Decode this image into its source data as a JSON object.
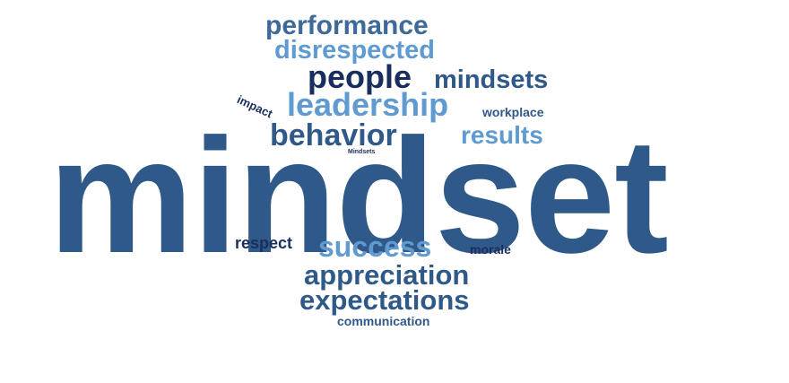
{
  "palette": {
    "dark_blue": "#2f5989",
    "navy": "#1a2e5e",
    "light_blue": "#5f9ad0",
    "mid_blue": "#3e6a99"
  },
  "words": [
    {
      "text": "mindset",
      "color": "#2f5989",
      "rank": 1
    },
    {
      "text": "performance",
      "color": "#3e6a99",
      "rank": 2
    },
    {
      "text": "disrespected",
      "color": "#5f9ad0",
      "rank": 3
    },
    {
      "text": "people",
      "color": "#1a2e5e",
      "rank": 4
    },
    {
      "text": "mindsets",
      "color": "#2f5989",
      "rank": 5
    },
    {
      "text": "leadership",
      "color": "#5f9ad0",
      "rank": 6
    },
    {
      "text": "impact",
      "color": "#1a2e5e",
      "rank": 7
    },
    {
      "text": "workplace",
      "color": "#2f5989",
      "rank": 8
    },
    {
      "text": "behavior",
      "color": "#2f5989",
      "rank": 9
    },
    {
      "text": "results",
      "color": "#5f9ad0",
      "rank": 10
    },
    {
      "text": "Mindsets",
      "color": "#1a2e5e",
      "rank": 11
    },
    {
      "text": "respect",
      "color": "#1a2e5e",
      "rank": 12
    },
    {
      "text": "success",
      "color": "#5f9ad0",
      "rank": 13
    },
    {
      "text": "morale",
      "color": "#1a2e5e",
      "rank": 14
    },
    {
      "text": "appreciation",
      "color": "#2f5989",
      "rank": 15
    },
    {
      "text": "expectations",
      "color": "#2f5989",
      "rank": 16
    },
    {
      "text": "communication",
      "color": "#2f5989",
      "rank": 17
    }
  ]
}
